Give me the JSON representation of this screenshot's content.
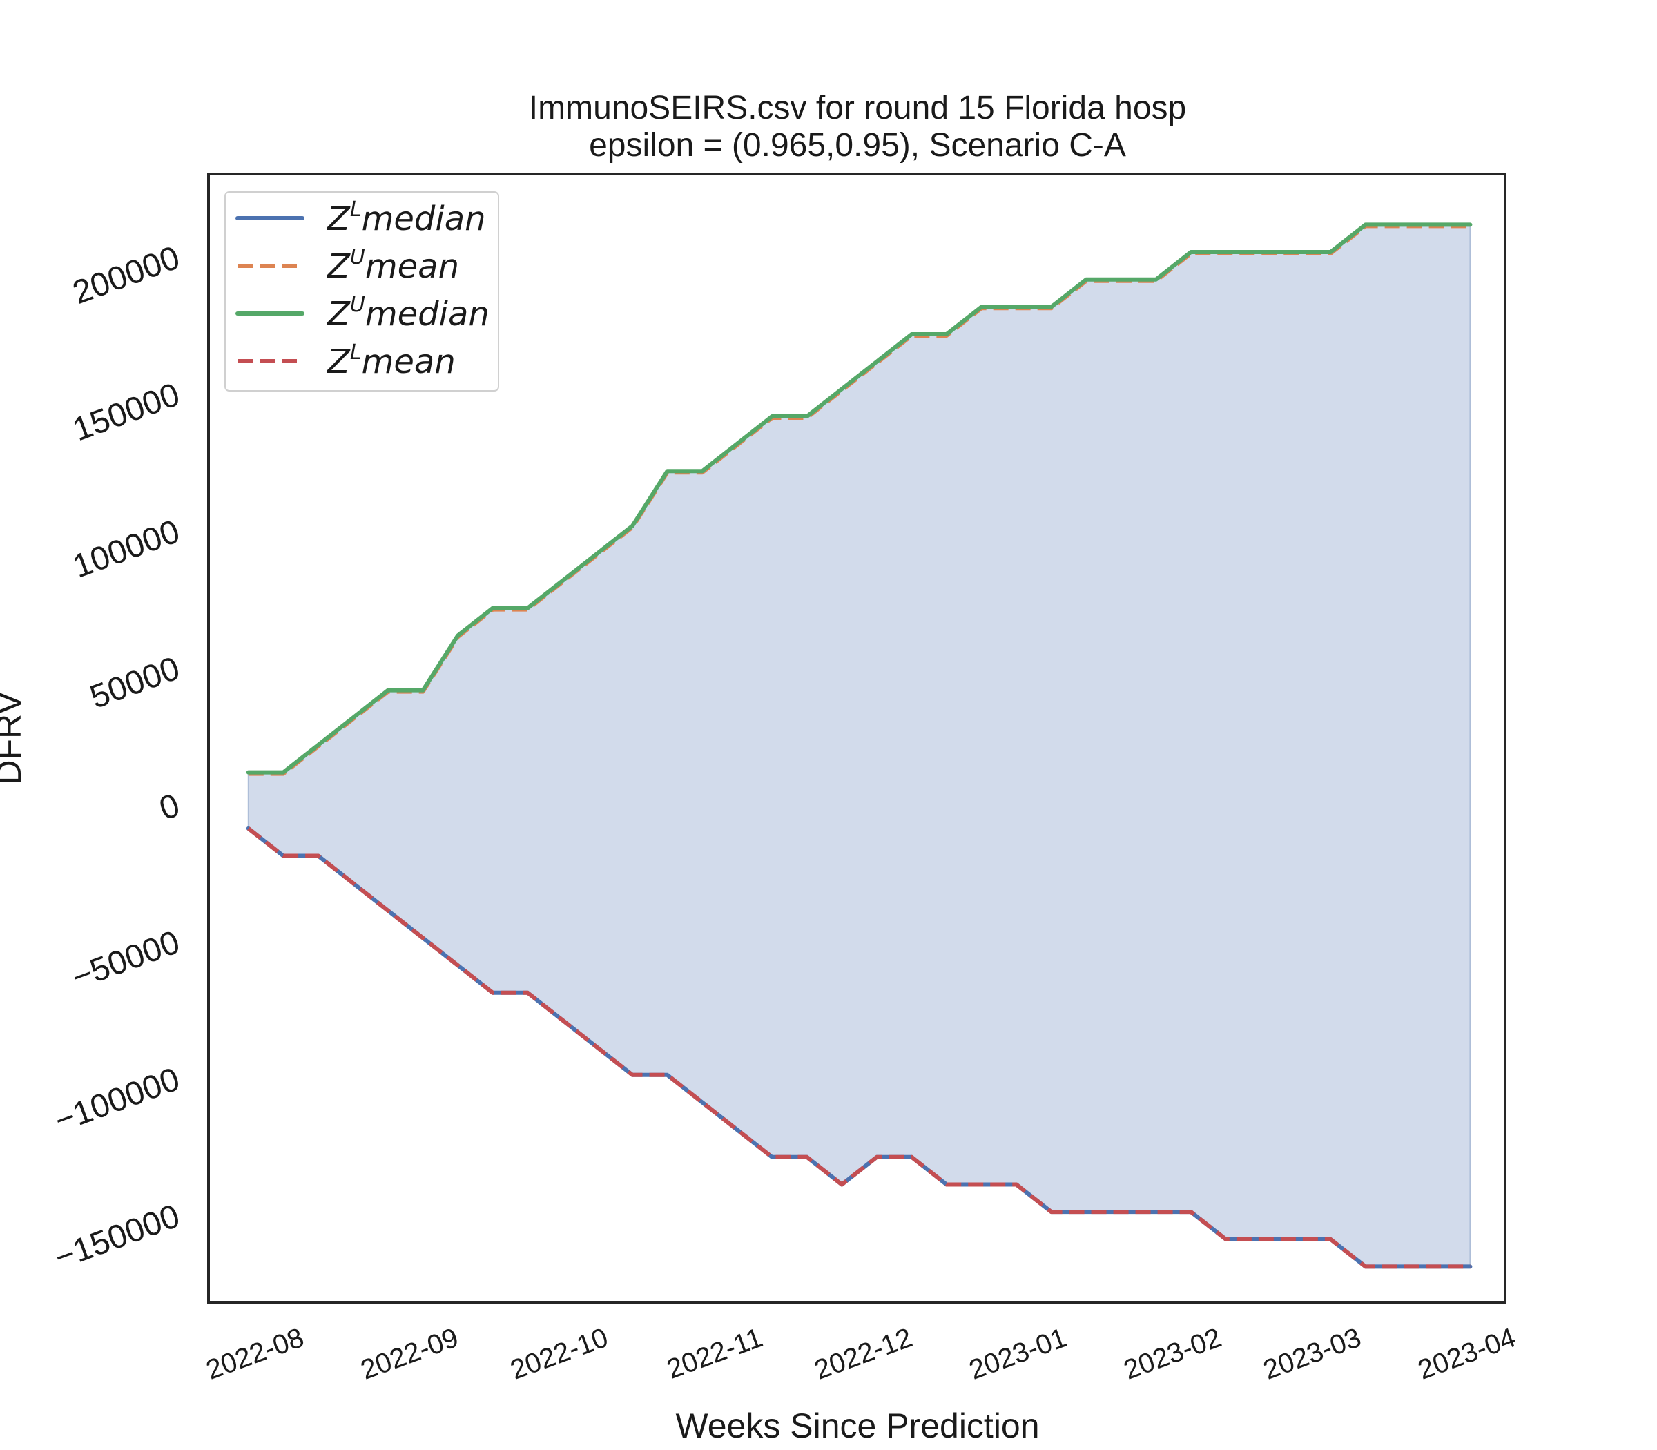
{
  "chart_data": {
    "type": "line",
    "title": "ImmunoSEIRS.csv for round 15 Florida  hosp",
    "subtitle": "epsilon = (0.965,0.95), Scenario C-A",
    "xlabel": "Weeks Since Prediction",
    "ylabel": "DFRV",
    "x_ticks": [
      "2022-08",
      "2022-09",
      "2022-10",
      "2022-11",
      "2022-12",
      "2023-01",
      "2023-02",
      "2023-03",
      "2023-04"
    ],
    "y_ticks": [
      "−150000",
      "−100000",
      "−50000",
      "0",
      "50000",
      "100000",
      "150000",
      "200000"
    ],
    "ylim": [
      -182000,
      230000
    ],
    "xlim": [
      "2022-07-15",
      "2023-04-01"
    ],
    "grid": false,
    "legend_position": "top-left",
    "fill_between": {
      "upper": "Z^U median",
      "lower": "Z^L median",
      "color": "#d2dbeb"
    },
    "x": [
      "2022-07-23",
      "2022-07-30",
      "2022-08-06",
      "2022-08-13",
      "2022-08-20",
      "2022-08-27",
      "2022-09-03",
      "2022-09-10",
      "2022-09-17",
      "2022-09-24",
      "2022-10-01",
      "2022-10-08",
      "2022-10-15",
      "2022-10-22",
      "2022-10-29",
      "2022-11-05",
      "2022-11-12",
      "2022-11-19",
      "2022-11-26",
      "2022-12-03",
      "2022-12-10",
      "2022-12-17",
      "2022-12-24",
      "2022-12-31",
      "2023-01-07",
      "2023-01-14",
      "2023-01-21",
      "2023-01-28",
      "2023-02-04",
      "2023-02-11",
      "2023-02-18",
      "2023-02-25",
      "2023-03-04",
      "2023-03-11",
      "2023-03-18",
      "2023-03-25"
    ],
    "series": [
      {
        "name": "$Z^L median$",
        "color": "#4c72b0",
        "style": "solid",
        "values": [
          -9000,
          -19000,
          -19000,
          -29000,
          -39000,
          -49000,
          -59000,
          -69000,
          -69000,
          -79000,
          -89000,
          -99000,
          -99000,
          -109000,
          -119000,
          -129000,
          -129000,
          -139000,
          -129000,
          -129000,
          -139000,
          -139000,
          -139000,
          -149000,
          -149000,
          -149000,
          -149000,
          -149000,
          -159000,
          -159000,
          -159000,
          -159000,
          -169000,
          -169000,
          -169000,
          -169000
        ]
      },
      {
        "name": "$Z^U mean$",
        "color": "#dd8452",
        "style": "dashed",
        "values": [
          11000,
          11000,
          21000,
          31000,
          41000,
          41000,
          61000,
          71000,
          71000,
          81000,
          91000,
          101000,
          121000,
          121000,
          131000,
          141000,
          141000,
          151000,
          161000,
          171000,
          171000,
          181000,
          181000,
          181000,
          191000,
          191000,
          191000,
          201000,
          201000,
          201000,
          201000,
          201000,
          211000,
          211000,
          211000,
          211000
        ]
      },
      {
        "name": "$Z^U median$",
        "color": "#55a868",
        "style": "solid",
        "values": [
          11500,
          11500,
          21500,
          31500,
          41500,
          41500,
          61500,
          71500,
          71500,
          81500,
          91500,
          101500,
          121500,
          121500,
          131500,
          141500,
          141500,
          151500,
          161500,
          171500,
          171500,
          181500,
          181500,
          181500,
          191500,
          191500,
          191500,
          201500,
          201500,
          201500,
          201500,
          201500,
          211500,
          211500,
          211500,
          211500
        ]
      },
      {
        "name": "$Z^L mean$",
        "color": "#c44e52",
        "style": "dashed",
        "values": [
          -9000,
          -19000,
          -19000,
          -29000,
          -39000,
          -49000,
          -59000,
          -69000,
          -69000,
          -79000,
          -89000,
          -99000,
          -99000,
          -109000,
          -119000,
          -129000,
          -129000,
          -139000,
          -129000,
          -129000,
          -139000,
          -139000,
          -139000,
          -149000,
          -149000,
          -149000,
          -149000,
          -149000,
          -159000,
          -159000,
          -159000,
          -159000,
          -169000,
          -169000,
          -169000,
          -169000
        ]
      }
    ],
    "legend": [
      {
        "base": "Z",
        "sup": "L",
        "rest": "median",
        "color": "#4c72b0",
        "style": "solid"
      },
      {
        "base": "Z",
        "sup": "U",
        "rest": "mean",
        "color": "#dd8452",
        "style": "dashed"
      },
      {
        "base": "Z",
        "sup": "U",
        "rest": "median",
        "color": "#55a868",
        "style": "solid"
      },
      {
        "base": "Z",
        "sup": "L",
        "rest": "mean",
        "color": "#c44e52",
        "style": "dashed"
      }
    ]
  }
}
